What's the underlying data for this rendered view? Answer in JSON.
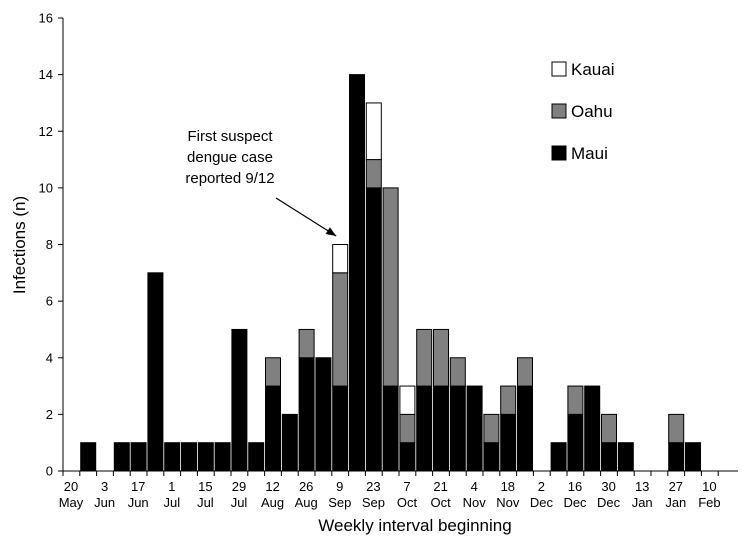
{
  "chart_data": {
    "type": "bar",
    "stacked": true,
    "title": "",
    "xlabel": "Weekly interval beginning",
    "ylabel": "Infections (n)",
    "ylim": [
      0,
      16
    ],
    "yticks": [
      "0",
      "2",
      "4",
      "6",
      "8",
      "10",
      "12",
      "14",
      "16"
    ],
    "grid": false,
    "legend_position": "top-right",
    "x_tick_labels": [
      [
        "20",
        "May"
      ],
      [
        "3",
        "Jun"
      ],
      [
        "17",
        "Jun"
      ],
      [
        "1",
        "Jul"
      ],
      [
        "15",
        "Jul"
      ],
      [
        "29",
        "Jul"
      ],
      [
        "12",
        "Aug"
      ],
      [
        "26",
        "Aug"
      ],
      [
        "9",
        "Sep"
      ],
      [
        "23",
        "Sep"
      ],
      [
        "7",
        "Oct"
      ],
      [
        "21",
        "Oct"
      ],
      [
        "4",
        "Nov"
      ],
      [
        "18",
        "Nov"
      ],
      [
        "2",
        "Dec"
      ],
      [
        "16",
        "Dec"
      ],
      [
        "30",
        "Dec"
      ],
      [
        "13",
        "Jan"
      ],
      [
        "27",
        "Jan"
      ],
      [
        "10",
        "Feb"
      ]
    ],
    "categories": [
      "20 May",
      "27 May",
      "3 Jun",
      "10 Jun",
      "17 Jun",
      "24 Jun",
      "1 Jul",
      "8 Jul",
      "15 Jul",
      "22 Jul",
      "29 Jul",
      "5 Aug",
      "12 Aug",
      "19 Aug",
      "26 Aug",
      "2 Sep",
      "9 Sep",
      "16 Sep",
      "23 Sep",
      "30 Sep",
      "7 Oct",
      "14 Oct",
      "21 Oct",
      "28 Oct",
      "4 Nov",
      "11 Nov",
      "18 Nov",
      "25 Nov",
      "2 Dec",
      "9 Dec",
      "16 Dec",
      "23 Dec",
      "30 Dec",
      "6 Jan",
      "13 Jan",
      "20 Jan",
      "27 Jan",
      "3 Feb",
      "10 Feb"
    ],
    "series": [
      {
        "name": "Maui",
        "color": "#000000",
        "values": [
          0,
          1,
          0,
          1,
          1,
          7,
          1,
          1,
          1,
          1,
          5,
          1,
          3,
          2,
          4,
          4,
          3,
          14,
          10,
          3,
          1,
          3,
          3,
          3,
          3,
          1,
          2,
          3,
          0,
          1,
          2,
          3,
          1,
          1,
          0,
          0,
          1,
          1,
          0
        ]
      },
      {
        "name": "Oahu",
        "color": "#808080",
        "values": [
          0,
          0,
          0,
          0,
          0,
          0,
          0,
          0,
          0,
          0,
          0,
          0,
          1,
          0,
          1,
          0,
          4,
          0,
          1,
          7,
          1,
          2,
          2,
          1,
          0,
          1,
          1,
          1,
          0,
          0,
          1,
          0,
          1,
          0,
          0,
          0,
          1,
          0,
          0
        ]
      },
      {
        "name": "Kauai",
        "color": "#ffffff",
        "values": [
          0,
          0,
          0,
          0,
          0,
          0,
          0,
          0,
          0,
          0,
          0,
          0,
          0,
          0,
          0,
          0,
          1,
          0,
          2,
          0,
          1,
          0,
          0,
          0,
          0,
          0,
          0,
          0,
          0,
          0,
          0,
          0,
          0,
          0,
          0,
          0,
          0,
          0,
          0
        ]
      }
    ],
    "legend": [
      "Kauai",
      "Oahu",
      "Maui"
    ],
    "annotation": {
      "lines": [
        "First suspect",
        "dengue case",
        "reported 9/12"
      ],
      "points_to": "9 Sep"
    }
  }
}
